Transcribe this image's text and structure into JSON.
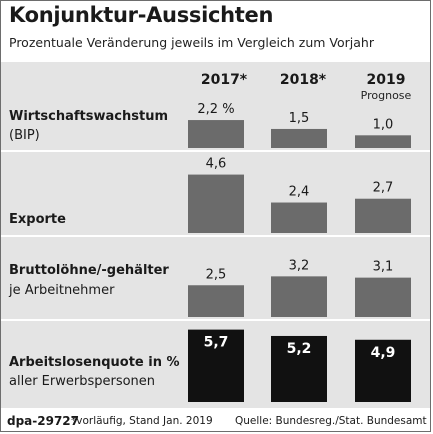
{
  "header": {
    "title": "Konjunktur-Aussichten",
    "subtitle": "Prozentuale Veränderung jeweils im Vergleich zum Vorjahr"
  },
  "columns": [
    {
      "label": "2017*",
      "sublabel": ""
    },
    {
      "label": "2018*",
      "sublabel": ""
    },
    {
      "label": "2019",
      "sublabel": "Prognose"
    }
  ],
  "chart_data": {
    "type": "bar",
    "categories": [
      "2017*",
      "2018*",
      "2019"
    ],
    "rows": [
      {
        "label": "Wirtschaftswachstum",
        "sublabel": "(BIP)",
        "values": [
          2.2,
          1.5,
          1.0
        ],
        "value_labels": [
          "2,2 %",
          "1,5",
          "1,0"
        ],
        "color": "#6b6b6b"
      },
      {
        "label": "Exporte",
        "sublabel": "",
        "values": [
          4.6,
          2.4,
          2.7
        ],
        "value_labels": [
          "4,6",
          "2,4",
          "2,7"
        ],
        "color": "#6b6b6b"
      },
      {
        "label": "Bruttolöhne/-gehälter",
        "sublabel": "je Arbeitnehmer",
        "values": [
          2.5,
          3.2,
          3.1
        ],
        "value_labels": [
          "2,5",
          "3,2",
          "3,1"
        ],
        "color": "#6b6b6b"
      },
      {
        "label": "Arbeitslosenquote in %",
        "sublabel": "aller Erwerbspersonen",
        "values": [
          5.7,
          5.2,
          4.9
        ],
        "value_labels": [
          "5,7",
          "5,2",
          "4,9"
        ],
        "color": "#111111"
      }
    ]
  },
  "footer": {
    "source_id": "dpa-29727",
    "note": "*vorläufig, Stand Jan. 2019",
    "source": "Quelle: Bundesreg./Stat. Bundesamt"
  }
}
